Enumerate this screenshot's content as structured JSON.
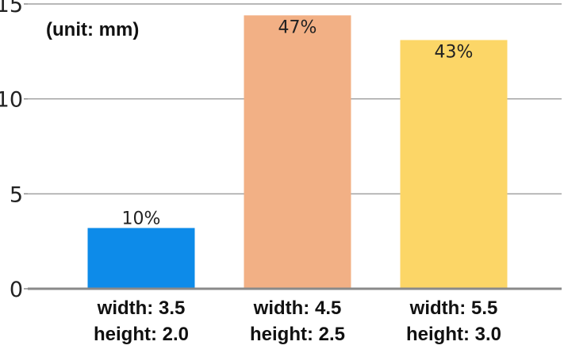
{
  "chart_data": {
    "type": "bar",
    "annotation": "(unit: mm)",
    "categories": [
      [
        "width: 3.5",
        "height: 2.0"
      ],
      [
        "width: 4.5",
        "height: 2.5"
      ],
      [
        "width: 5.5",
        "height: 3.0"
      ]
    ],
    "values": [
      3.2,
      14.4,
      13.1
    ],
    "data_labels": [
      "10%",
      "47%",
      "43%"
    ],
    "colors": [
      "#0d8be9",
      "#f2b085",
      "#fcd667"
    ],
    "ylim": [
      0,
      15
    ],
    "yticks": [
      "0",
      "5",
      "10",
      "15"
    ],
    "grid": true,
    "legend": "none"
  }
}
